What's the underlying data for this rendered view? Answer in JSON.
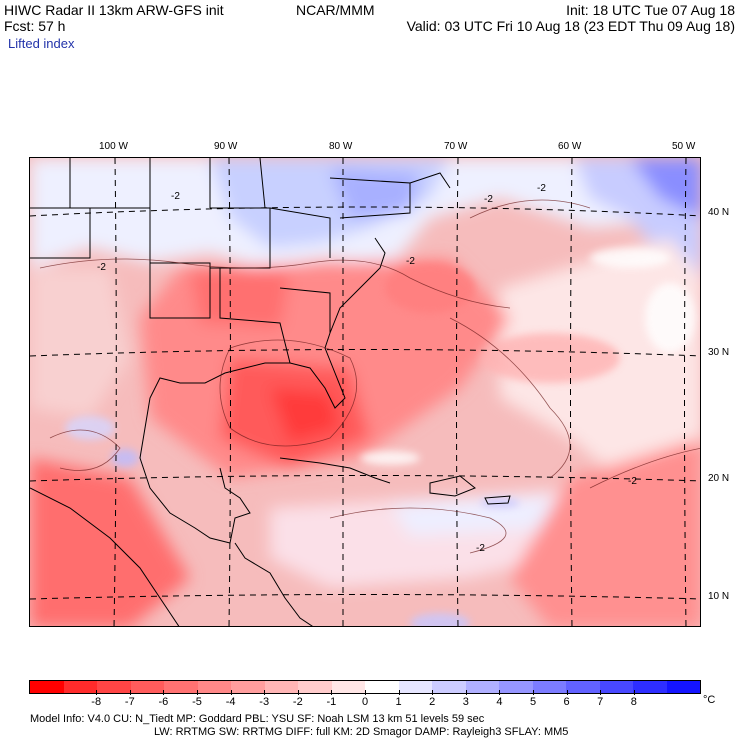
{
  "header": {
    "line1_left": "HIWC Radar II 13km ARW-GFS init",
    "line1_center": "NCAR/MMM",
    "line1_right": "Init: 18 UTC Tue 07 Aug 18",
    "line2_left": "Fcst:    57 h",
    "line2_right": "Valid: 03 UTC Fri 10 Aug 18 (23 EDT Thu 09 Aug 18)",
    "field": "Lifted index"
  },
  "map": {
    "lon_labels": [
      "100 W",
      "90 W",
      "80 W",
      "70 W",
      "60 W",
      "50 W"
    ],
    "lat_labels": [
      "40 N",
      "30 N",
      "20 N",
      "10 N"
    ],
    "contour_labels": [
      "-2",
      "-2",
      "-2",
      "-2",
      "-2",
      "-2",
      "-2"
    ]
  },
  "colorbar": {
    "colors": [
      "#ff0000",
      "#ff2b2b",
      "#ff4545",
      "#ff5c5c",
      "#ff7272",
      "#ff8888",
      "#ff9e9e",
      "#ffb6b6",
      "#ffcccc",
      "#ffe6e6",
      "#ffffff",
      "#e6e6ff",
      "#ccccff",
      "#b0b0ff",
      "#9696ff",
      "#7c7cff",
      "#6262ff",
      "#4848ff",
      "#2e2eff",
      "#1414ff"
    ],
    "ticks": [
      "-8",
      "-7",
      "-6",
      "-5",
      "-4",
      "-3",
      "-2",
      "-1",
      "0",
      "1",
      "2",
      "3",
      "4",
      "5",
      "6",
      "7",
      "8"
    ],
    "unit": "°C"
  },
  "footer": {
    "line1": "Model Info: V4.0     CU: N_Tiedt  MP: Goddard    PBL: YSU     SF: Noah LSM     13 km    51 levels    59 sec",
    "line2": "LW: RRTMG    SW: RRTMG   DIFF: full   KM: 2D Smagor  DAMP: Rayleigh3  SFLAY: MM5"
  }
}
